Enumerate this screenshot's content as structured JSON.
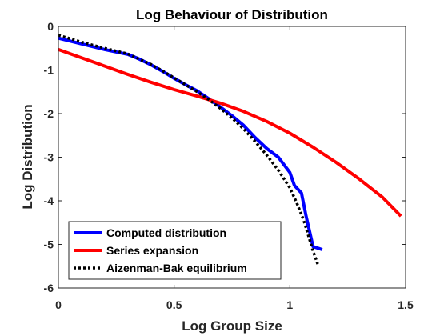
{
  "chart_data": {
    "type": "line",
    "title": "Log Behaviour of Distribution",
    "xlabel": "Log Group Size",
    "ylabel": "Log Distribution",
    "xlim": [
      0,
      1.5
    ],
    "ylim": [
      -6,
      0
    ],
    "xticks": [
      0,
      0.5,
      1,
      1.5
    ],
    "xtick_labels": [
      "0",
      "0.5",
      "1",
      "1.5"
    ],
    "yticks": [
      0,
      -1,
      -2,
      -3,
      -4,
      -5,
      -6
    ],
    "ytick_labels": [
      "0",
      "-1",
      "-2",
      "-3",
      "-4",
      "-5",
      "-6"
    ],
    "grid": false,
    "legend_position": "bottom-left",
    "series": [
      {
        "name": "Computed distribution",
        "color": "#0000FF",
        "style": "solid",
        "x": [
          0,
          0.1,
          0.2,
          0.3,
          0.35,
          0.4,
          0.45,
          0.5,
          0.55,
          0.6,
          0.65,
          0.7,
          0.75,
          0.8,
          0.85,
          0.9,
          0.95,
          1.0,
          1.02,
          1.05,
          1.07,
          1.1,
          1.14
        ],
        "y": [
          -0.27,
          -0.4,
          -0.53,
          -0.64,
          -0.75,
          -0.88,
          -1.03,
          -1.19,
          -1.34,
          -1.48,
          -1.66,
          -1.85,
          -2.05,
          -2.27,
          -2.55,
          -2.8,
          -3.0,
          -3.35,
          -3.65,
          -3.82,
          -4.35,
          -5.05,
          -5.12
        ]
      },
      {
        "name": "Series expansion",
        "color": "#FF0000",
        "style": "solid",
        "x": [
          0,
          0.1,
          0.2,
          0.3,
          0.4,
          0.5,
          0.6,
          0.7,
          0.8,
          0.9,
          1.0,
          1.1,
          1.2,
          1.3,
          1.4,
          1.48
        ],
        "y": [
          -0.53,
          -0.72,
          -0.91,
          -1.1,
          -1.28,
          -1.45,
          -1.6,
          -1.76,
          -1.95,
          -2.18,
          -2.45,
          -2.77,
          -3.12,
          -3.5,
          -3.92,
          -4.35
        ]
      },
      {
        "name": "Aizenman-Bak equilibrium",
        "color": "#000000",
        "style": "dotted",
        "x": [
          0,
          0.1,
          0.2,
          0.3,
          0.35,
          0.4,
          0.45,
          0.5,
          0.55,
          0.6,
          0.65,
          0.7,
          0.75,
          0.8,
          0.85,
          0.9,
          0.95,
          1.0,
          1.03,
          1.06,
          1.08,
          1.1,
          1.12
        ],
        "y": [
          -0.2,
          -0.36,
          -0.5,
          -0.63,
          -0.75,
          -0.87,
          -1.02,
          -1.18,
          -1.34,
          -1.5,
          -1.68,
          -1.88,
          -2.1,
          -2.35,
          -2.64,
          -2.95,
          -3.3,
          -3.7,
          -4.05,
          -4.45,
          -4.8,
          -5.15,
          -5.45
        ]
      }
    ]
  }
}
